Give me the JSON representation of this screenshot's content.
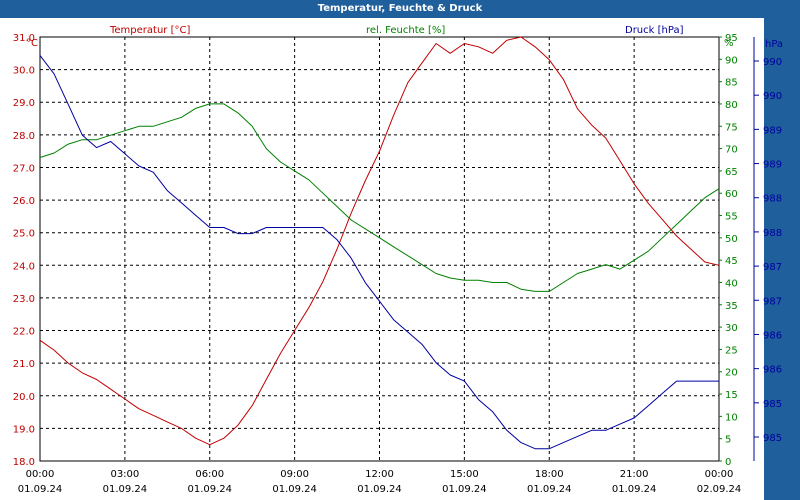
{
  "window": {
    "title": "Temperatur, Feuchte & Druck"
  },
  "colors": {
    "temp": "#c00000",
    "hum": "#008000",
    "press": "#0000a0",
    "titlebar": "#1f5f9c"
  },
  "chart_data": {
    "type": "line",
    "title": "Temperatur, Feuchte & Druck",
    "grid": true,
    "x_ticks": [
      {
        "time": "00:00",
        "date": "01.09.24"
      },
      {
        "time": "03:00",
        "date": "01.09.24"
      },
      {
        "time": "06:00",
        "date": "01.09.24"
      },
      {
        "time": "09:00",
        "date": "01.09.24"
      },
      {
        "time": "12:00",
        "date": "01.09.24"
      },
      {
        "time": "15:00",
        "date": "01.09.24"
      },
      {
        "time": "18:00",
        "date": "01.09.24"
      },
      {
        "time": "21:00",
        "date": "01.09.24"
      },
      {
        "time": "00:00",
        "date": "02.09.24"
      }
    ],
    "x_range_hours": [
      0,
      24
    ],
    "axes": {
      "temp": {
        "label": "Temperatur [°C]",
        "unit": "°C",
        "range": [
          18.0,
          31.0
        ],
        "ticks": [
          "18.0",
          "19.0",
          "20.0",
          "21.0",
          "22.0",
          "23.0",
          "24.0",
          "25.0",
          "26.0",
          "27.0",
          "28.0",
          "29.0",
          "30.0",
          "31.0"
        ]
      },
      "hum": {
        "label": "rel. Feuchte [%]",
        "unit": "%",
        "range": [
          0,
          95
        ],
        "ticks": [
          "0",
          "5",
          "10",
          "15",
          "20",
          "25",
          "30",
          "35",
          "40",
          "45",
          "50",
          "55",
          "60",
          "65",
          "70",
          "75",
          "80",
          "85",
          "90",
          "95"
        ]
      },
      "press": {
        "label": "Druck [hPa]",
        "unit": "hPa",
        "ticks": [
          "985",
          "985",
          "986",
          "986",
          "987",
          "987",
          "988",
          "988",
          "989",
          "989",
          "990",
          "990"
        ]
      }
    },
    "series": [
      {
        "name": "Temperatur [°C]",
        "axis": "temp",
        "x": [
          0,
          0.5,
          1,
          1.5,
          2,
          2.5,
          3,
          3.5,
          4,
          4.5,
          5,
          5.5,
          6,
          6.5,
          7,
          7.5,
          8,
          8.5,
          9,
          9.5,
          10,
          10.5,
          11,
          11.5,
          12,
          12.5,
          13,
          13.5,
          14,
          14.5,
          15,
          15.5,
          16,
          16.5,
          17,
          17.5,
          18,
          18.5,
          19,
          19.5,
          20,
          20.5,
          21,
          21.5,
          22,
          22.5,
          23,
          23.5,
          24
        ],
        "y": [
          21.7,
          21.4,
          21.0,
          20.7,
          20.5,
          20.2,
          19.9,
          19.6,
          19.4,
          19.2,
          19.0,
          18.7,
          18.5,
          18.7,
          19.1,
          19.7,
          20.5,
          21.3,
          22.0,
          22.7,
          23.5,
          24.5,
          25.6,
          26.6,
          27.5,
          28.6,
          29.6,
          30.2,
          30.8,
          30.5,
          30.8,
          30.7,
          30.5,
          30.9,
          31.0,
          30.7,
          30.3,
          29.7,
          28.8,
          28.3,
          27.9,
          27.2,
          26.5,
          25.9,
          25.4,
          24.9,
          24.5,
          24.1,
          24.0
        ]
      },
      {
        "name": "rel. Feuchte [%]",
        "axis": "hum",
        "x": [
          0,
          0.5,
          1,
          1.5,
          2,
          2.5,
          3,
          3.5,
          4,
          4.5,
          5,
          5.5,
          6,
          6.5,
          7,
          7.5,
          8,
          8.5,
          9,
          9.5,
          10,
          10.5,
          11,
          11.5,
          12,
          12.5,
          13,
          13.5,
          14,
          14.5,
          15,
          15.5,
          16,
          16.5,
          17,
          17.5,
          18,
          18.5,
          19,
          19.5,
          20,
          20.5,
          21,
          21.5,
          22,
          22.5,
          23,
          23.5,
          24
        ],
        "y": [
          68,
          69,
          71,
          72,
          72,
          73,
          74,
          75,
          75,
          76,
          77,
          79,
          80,
          80,
          78,
          75,
          70,
          67,
          65,
          63,
          60,
          57,
          54,
          52,
          50,
          48,
          46,
          44,
          42,
          41,
          40.5,
          40.5,
          40,
          40,
          38.5,
          38,
          38,
          40,
          42,
          43,
          44,
          43,
          45,
          47,
          50,
          53,
          56,
          59,
          61
        ]
      },
      {
        "name": "Druck [hPa]",
        "axis": "press",
        "x": [
          0,
          0.5,
          1,
          1.5,
          2,
          2.5,
          3,
          3.5,
          4,
          4.5,
          5,
          5.5,
          6,
          6.5,
          7,
          7.5,
          8,
          8.5,
          9,
          9.5,
          10,
          10.5,
          11,
          11.5,
          12,
          12.5,
          13,
          13.5,
          14,
          14.5,
          15,
          15.5,
          16,
          16.5,
          17,
          17.5,
          18,
          18.5,
          19,
          19.5,
          20,
          20.5,
          21,
          21.5,
          22,
          22.5,
          23,
          23.5,
          24
        ],
        "y": [
          990.9,
          990.6,
          990.1,
          989.6,
          989.4,
          989.5,
          989.3,
          989.1,
          989.0,
          988.7,
          988.5,
          988.3,
          988.1,
          988.1,
          988.0,
          988.0,
          988.1,
          988.1,
          988.1,
          988.1,
          988.1,
          987.9,
          987.6,
          987.2,
          986.9,
          986.6,
          986.4,
          986.2,
          985.9,
          985.7,
          985.6,
          985.3,
          985.1,
          984.8,
          984.6,
          984.5,
          984.5,
          984.6,
          984.7,
          984.8,
          984.8,
          984.9,
          985.0,
          985.2,
          985.4,
          985.6,
          985.6,
          985.6,
          985.6
        ]
      }
    ],
    "press_range": [
      984.3,
      991.2
    ]
  }
}
